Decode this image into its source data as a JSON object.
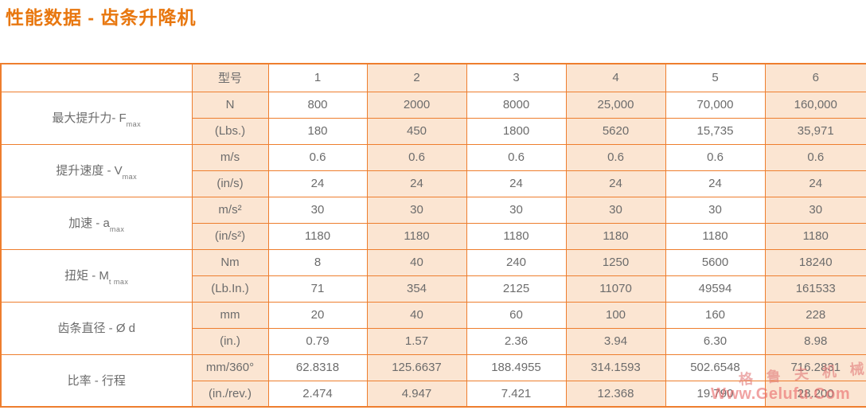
{
  "title": "性能数据 - 齿条升降机",
  "table": {
    "corner": "",
    "header": {
      "unit_label": "型号",
      "models": [
        "1",
        "2",
        "3",
        "4",
        "5",
        "6"
      ]
    },
    "groups": [
      {
        "label_cn": "最大提升力- F",
        "label_sub": "max",
        "rows": [
          {
            "unit": "N",
            "values": [
              "800",
              "2000",
              "8000",
              "25,000",
              "70,000",
              "160,000"
            ]
          },
          {
            "unit": "(Lbs.)",
            "values": [
              "180",
              "450",
              "1800",
              "5620",
              "15,735",
              "35,971"
            ]
          }
        ]
      },
      {
        "label_cn": "提升速度 - V",
        "label_sub": "max",
        "rows": [
          {
            "unit": "m/s",
            "values": [
              "0.6",
              "0.6",
              "0.6",
              "0.6",
              "0.6",
              "0.6"
            ]
          },
          {
            "unit": "(in/s)",
            "values": [
              "24",
              "24",
              "24",
              "24",
              "24",
              "24"
            ]
          }
        ]
      },
      {
        "label_cn": "加速 - a",
        "label_sub": "max",
        "rows": [
          {
            "unit": "m/s²",
            "values": [
              "30",
              "30",
              "30",
              "30",
              "30",
              "30"
            ]
          },
          {
            "unit": "(in/s²)",
            "values": [
              "1180",
              "1180",
              "1180",
              "1180",
              "1180",
              "1180"
            ]
          }
        ]
      },
      {
        "label_cn": "扭矩 - M",
        "label_sub": "t max",
        "rows": [
          {
            "unit": "Nm",
            "values": [
              "8",
              "40",
              "240",
              "1250",
              "5600",
              "18240"
            ]
          },
          {
            "unit": "(Lb.In.)",
            "values": [
              "71",
              "354",
              "2125",
              "11070",
              "49594",
              "161533"
            ]
          }
        ]
      },
      {
        "label_cn": "齿条直径 - Ø d",
        "label_sub": "",
        "rows": [
          {
            "unit": "mm",
            "values": [
              "20",
              "40",
              "60",
              "100",
              "160",
              "228"
            ]
          },
          {
            "unit": "(in.)",
            "values": [
              "0.79",
              "1.57",
              "2.36",
              "3.94",
              "6.30",
              "8.98"
            ]
          }
        ]
      },
      {
        "label_cn": "比率 - 行程",
        "label_sub": "",
        "rows": [
          {
            "unit": "mm/360°",
            "values": [
              "62.8318",
              "125.6637",
              "188.4955",
              "314.1593",
              "502.6548",
              "716.2831"
            ]
          },
          {
            "unit": "(in./rev.)",
            "values": [
              "2.474",
              "4.947",
              "7.421",
              "12.368",
              "19.790",
              "28.200"
            ]
          }
        ]
      }
    ]
  },
  "watermark": {
    "brand": "格鲁夫机械",
    "url": "Www.Gelufu.Com"
  },
  "colors": {
    "border": "#EE7E2E",
    "fill": "#FBE5D2",
    "title": "#E8770F",
    "text": "#6C6C6C",
    "watermark": "#E96A6A"
  }
}
